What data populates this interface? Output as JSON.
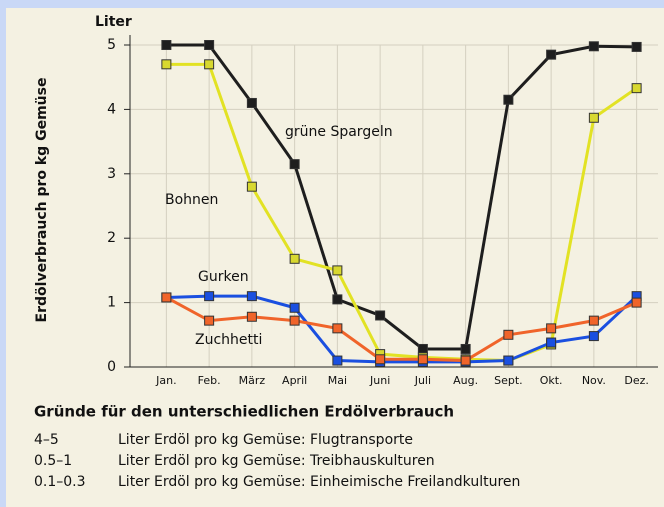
{
  "chart_data": {
    "type": "line",
    "y_unit": "Liter",
    "y_label": "Erdölverbrauch pro kg Gemüse",
    "categories": [
      "Jan.",
      "Feb.",
      "März",
      "April",
      "Mai",
      "Juni",
      "Juli",
      "Aug.",
      "Sept.",
      "Okt.",
      "Nov.",
      "Dez."
    ],
    "series": [
      {
        "name": "grüne Spargeln",
        "color": "#1e1e1e",
        "marker": "#1e1e1e",
        "values": [
          5,
          5,
          4.1,
          3.15,
          1.05,
          0.8,
          0.28,
          0.28,
          4.15,
          4.85,
          4.98,
          4.97
        ]
      },
      {
        "name": "Bohnen",
        "color": "#e2e224",
        "marker": "#d8d830",
        "values": [
          4.7,
          4.7,
          2.8,
          1.68,
          1.5,
          0.2,
          0.15,
          0.12,
          0.1,
          0.35,
          3.87,
          4.33
        ]
      },
      {
        "name": "Gurken",
        "color": "#1a4fe0",
        "marker": "#1a4fe0",
        "values": [
          1.08,
          1.1,
          1.1,
          0.92,
          0.1,
          0.08,
          0.08,
          0.08,
          0.1,
          0.38,
          0.48,
          1.1
        ]
      },
      {
        "name": "Zuchhetti",
        "color": "#f0642a",
        "marker": "#f0642a",
        "values": [
          1.08,
          0.72,
          0.78,
          0.72,
          0.6,
          0.12,
          0.12,
          0.1,
          0.5,
          0.6,
          0.72,
          1.0
        ]
      }
    ],
    "ylim": [
      0,
      5
    ],
    "yticks": [
      0,
      1,
      2,
      3,
      4,
      5
    ],
    "grid": true
  },
  "notes": {
    "title": "Gründe für den unterschiedlichen Erdölverbrauch",
    "rows": [
      [
        "4–5",
        "Liter Erdöl pro kg Gemüse: Flugtransporte"
      ],
      [
        "0.5–1",
        "Liter Erdöl pro kg Gemüse: Treibhauskulturen"
      ],
      [
        "0.1–0.3",
        "Liter Erdöl pro kg Gemüse: Einheimische Freilandkulturen"
      ]
    ]
  }
}
